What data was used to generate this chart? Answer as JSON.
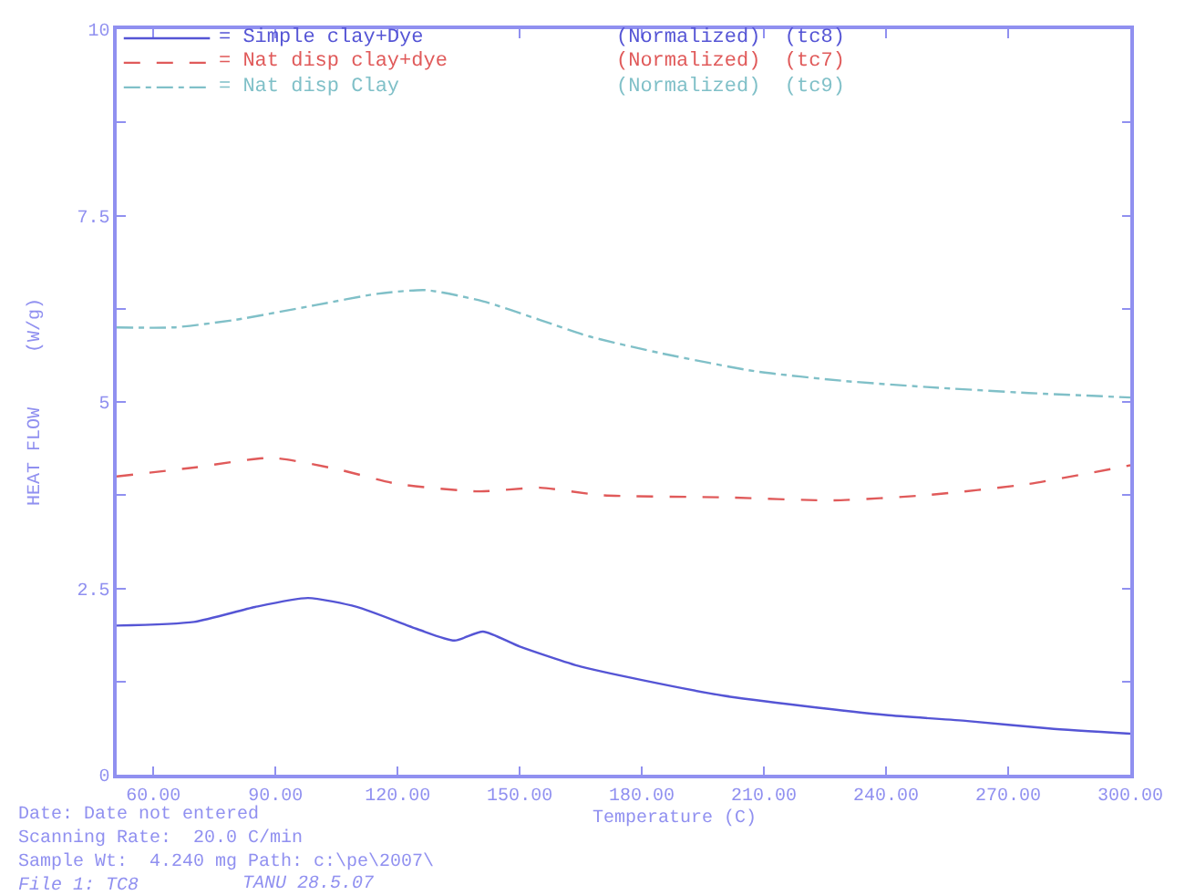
{
  "chart_data": {
    "type": "line",
    "xlabel": "Temperature (C)",
    "ylabel": "HEAT FLOW     (W/g)",
    "xlim": [
      51,
      300
    ],
    "ylim": [
      0,
      10
    ],
    "xticks": [
      {
        "value": 60,
        "label": "60.00"
      },
      {
        "value": 90,
        "label": "90.00"
      },
      {
        "value": 120,
        "label": "120.00"
      },
      {
        "value": 150,
        "label": "150.00"
      },
      {
        "value": 180,
        "label": "180.00"
      },
      {
        "value": 210,
        "label": "210.00"
      },
      {
        "value": 240,
        "label": "240.00"
      },
      {
        "value": 270,
        "label": "270.00"
      },
      {
        "value": 300,
        "label": "300.00"
      }
    ],
    "yticks": [
      0,
      {
        "value": 1.25,
        "label": null
      },
      2.5,
      {
        "value": 3.75,
        "label": null
      },
      5,
      {
        "value": 6.25,
        "label": null
      },
      7.5,
      {
        "value": 8.75,
        "label": null
      },
      10
    ],
    "legend": "top left",
    "marker": "none",
    "series": [
      {
        "name": "= Simple clay+Dye",
        "color": "#5555d5",
        "line_style": "solid",
        "x": [
          51,
          70,
          85,
          98,
          110,
          125,
          134,
          141,
          150,
          165,
          180,
          200,
          220,
          240,
          260,
          280,
          300
        ],
        "values": [
          2.0,
          2.05,
          2.25,
          2.37,
          2.25,
          1.95,
          1.8,
          1.92,
          1.72,
          1.45,
          1.27,
          1.06,
          0.92,
          0.8,
          0.72,
          0.62,
          0.55
        ]
      },
      {
        "name": "= Nat disp clay+dye",
        "color": "#e05a5a",
        "line_style": "dashed",
        "x": [
          51,
          70,
          89,
          105,
          120,
          140,
          155,
          170,
          200,
          227,
          250,
          275,
          300
        ],
        "values": [
          4.0,
          4.12,
          4.25,
          4.1,
          3.9,
          3.8,
          3.85,
          3.75,
          3.72,
          3.68,
          3.75,
          3.9,
          4.15
        ]
      },
      {
        "name": "= Nat disp Clay",
        "color": "#80c0c8",
        "line_style": "dashdot",
        "x": [
          51,
          65,
          80,
          100,
          115,
          127,
          141,
          155,
          167,
          185,
          208,
          230,
          250,
          275,
          300
        ],
        "values": [
          6.0,
          6.0,
          6.1,
          6.3,
          6.45,
          6.5,
          6.35,
          6.1,
          5.88,
          5.65,
          5.41,
          5.28,
          5.2,
          5.12,
          5.06
        ]
      }
    ],
    "annotations": [
      "(Normalized)  (tc8)",
      "(Normalized)  (tc7)",
      "(Normalized)  (tc9)",
      "Date: Date not entered",
      "Scanning Rate:  20.0 C/min",
      "Sample Wt:  4.240 mg Path: c:\\pe\\2007\\",
      "File 1: TC8",
      "TANU 28.5.07"
    ]
  }
}
